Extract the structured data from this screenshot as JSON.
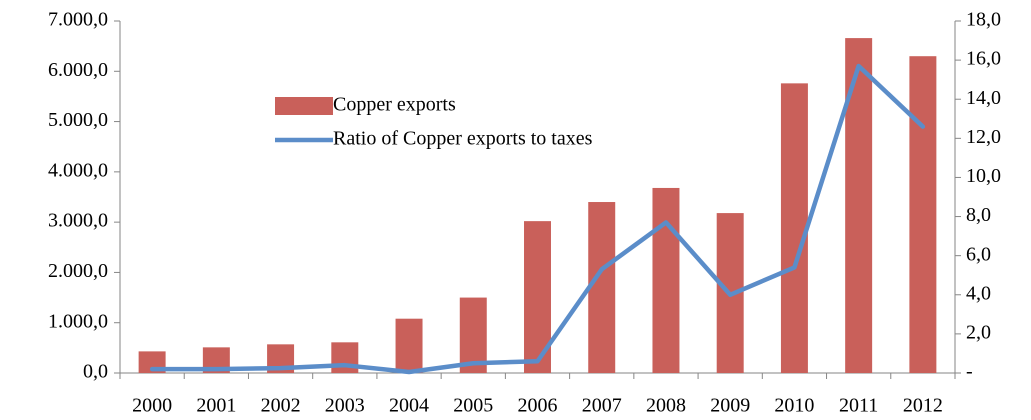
{
  "chart_data": {
    "type": "bar-line",
    "categories": [
      "2000",
      "2001",
      "2002",
      "2003",
      "2004",
      "2005",
      "2006",
      "2007",
      "2008",
      "2009",
      "2010",
      "2011",
      "2012"
    ],
    "series": [
      {
        "name": "Copper exports",
        "type": "bar",
        "color": "#c9605a",
        "values": [
          430,
          510,
          570,
          610,
          1080,
          1500,
          3020,
          3400,
          3680,
          3180,
          5760,
          6660,
          6300
        ]
      },
      {
        "name": "Ratio of Copper exports to taxes",
        "type": "line",
        "axis": "y2",
        "color": "#5b8dc9",
        "values": [
          0.2,
          0.2,
          0.25,
          0.4,
          0.05,
          0.5,
          0.6,
          5.3,
          7.7,
          4.0,
          5.4,
          15.7,
          12.6
        ]
      }
    ],
    "ylim": [
      0,
      7000
    ],
    "yticks": [
      {
        "value": 0,
        "label": "0,0"
      },
      {
        "value": 1000,
        "label": "1.000,0"
      },
      {
        "value": 2000,
        "label": "2.000,0"
      },
      {
        "value": 3000,
        "label": "3.000,0"
      },
      {
        "value": 4000,
        "label": "4.000,0"
      },
      {
        "value": 5000,
        "label": "5.000,0"
      },
      {
        "value": 6000,
        "label": "6.000,0"
      },
      {
        "value": 7000,
        "label": "7.000,0"
      }
    ],
    "y2lim": [
      0,
      18
    ],
    "y2ticks": [
      {
        "value": 0,
        "label": "-"
      },
      {
        "value": 2,
        "label": "2,0"
      },
      {
        "value": 4,
        "label": "4,0"
      },
      {
        "value": 6,
        "label": "6,0"
      },
      {
        "value": 8,
        "label": "8,0"
      },
      {
        "value": 10,
        "label": "10,0"
      },
      {
        "value": 12,
        "label": "12,0"
      },
      {
        "value": 14,
        "label": "14,0"
      },
      {
        "value": 16,
        "label": "16,0"
      },
      {
        "value": 18,
        "label": "18,0"
      }
    ],
    "legend": "upper left"
  }
}
